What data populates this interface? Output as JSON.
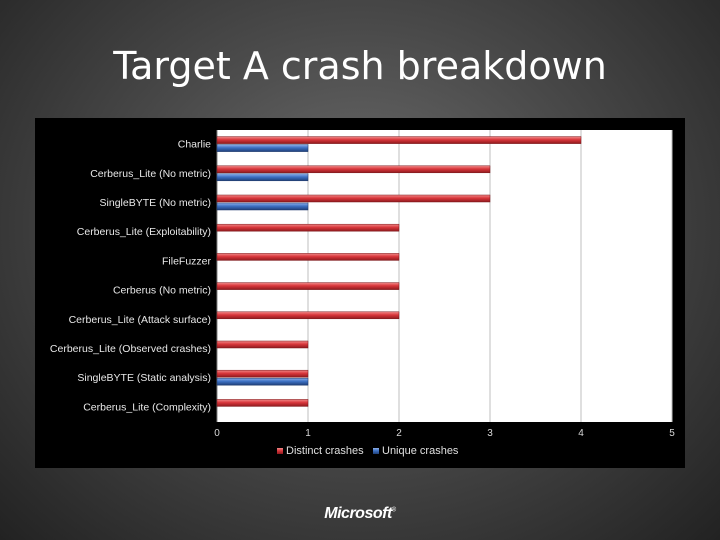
{
  "slide": {
    "title": "Target A crash breakdown",
    "logo_text": "Microsoft",
    "logo_mark": "®"
  },
  "chart_data": {
    "type": "bar",
    "orientation": "horizontal",
    "categories": [
      "Charlie",
      "Cerberus_Lite (No metric)",
      "SingleBYTE (No metric)",
      "Cerberus_Lite (Exploitability)",
      "FileFuzzer",
      "Cerberus (No metric)",
      "Cerberus_Lite (Attack surface)",
      "Cerberus_Lite (Observed crashes)",
      "SingleBYTE (Static analysis)",
      "Cerberus_Lite (Complexity)"
    ],
    "series": [
      {
        "name": "Distinct crashes",
        "color": "#d9363b",
        "values": [
          4,
          3,
          3,
          2,
          2,
          2,
          2,
          1,
          1,
          1
        ]
      },
      {
        "name": "Unique crashes",
        "color": "#3d71c4",
        "values": [
          1,
          1,
          1,
          0,
          0,
          0,
          0,
          0,
          1,
          0
        ]
      }
    ],
    "xlim": [
      0,
      5
    ],
    "xticks": [
      "0",
      "1",
      "2",
      "3",
      "4",
      "5"
    ],
    "grid": true,
    "legend_position": "bottom"
  }
}
